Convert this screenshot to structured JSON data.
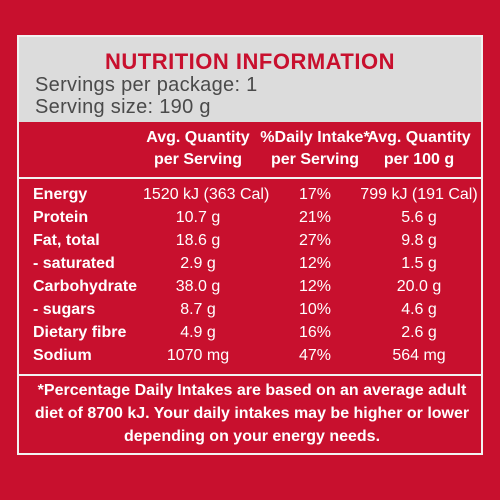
{
  "title": "NUTRITION INFORMATION",
  "servings_per_package": "Servings per package: 1",
  "serving_size": "Serving size: 190 g",
  "columns": [
    {
      "line1": "Avg. Quantity",
      "line2": "per Serving"
    },
    {
      "line1": "%Daily Intake*",
      "line2": "per Serving"
    },
    {
      "line1": "Avg. Quantity",
      "line2": "per 100 g"
    }
  ],
  "rows": [
    {
      "label": "Energy",
      "per_serving": "1520 kJ (363 Cal)",
      "daily_intake": "17%",
      "per_100g": "799 kJ (191 Cal)"
    },
    {
      "label": "Protein",
      "per_serving": "10.7 g",
      "daily_intake": "21%",
      "per_100g": "5.6 g"
    },
    {
      "label": "Fat, total",
      "per_serving": "18.6 g",
      "daily_intake": "27%",
      "per_100g": "9.8 g"
    },
    {
      "label": "- saturated",
      "per_serving": "2.9 g",
      "daily_intake": "12%",
      "per_100g": "1.5 g"
    },
    {
      "label": "Carbohydrate",
      "per_serving": "38.0 g",
      "daily_intake": "12%",
      "per_100g": "20.0 g"
    },
    {
      "label": "- sugars",
      "per_serving": "8.7 g",
      "daily_intake": "10%",
      "per_100g": "4.6 g"
    },
    {
      "label": "Dietary fibre",
      "per_serving": "4.9 g",
      "daily_intake": "16%",
      "per_100g": "2.6 g"
    },
    {
      "label": "Sodium",
      "per_serving": "1070 mg",
      "daily_intake": "47%",
      "per_100g": "564 mg"
    }
  ],
  "footnote": "*Percentage Daily Intakes are based on an average adult diet of 8700 kJ. Your daily intakes may be higher or lower depending on your energy needs.",
  "colors": {
    "background": "#c8102e",
    "header": "#dcdcdc",
    "text": "#ffffff",
    "border": "#f2f2f2"
  }
}
